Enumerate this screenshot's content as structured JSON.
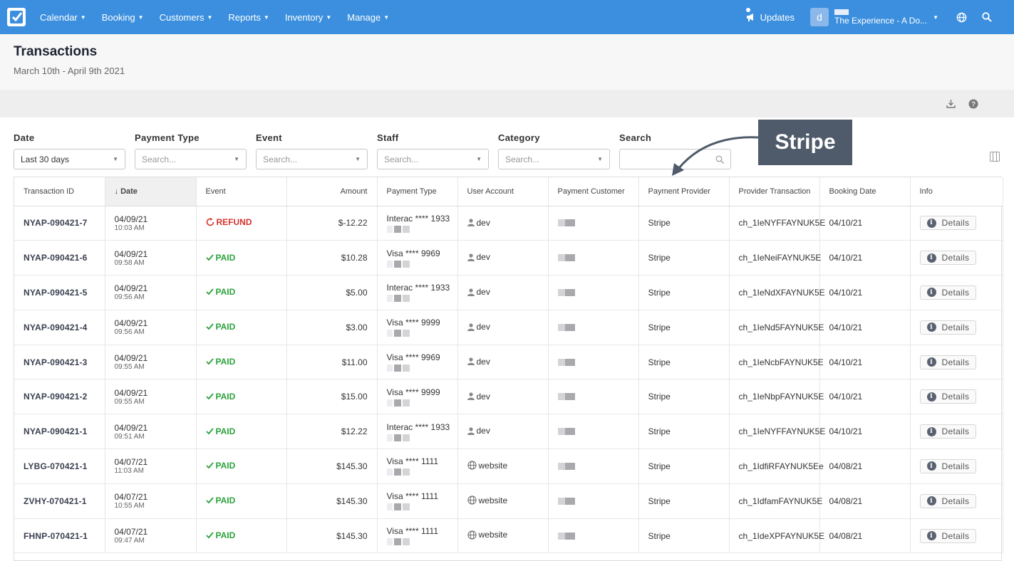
{
  "nav": {
    "items": [
      {
        "label": "Calendar"
      },
      {
        "label": "Booking"
      },
      {
        "label": "Customers"
      },
      {
        "label": "Reports"
      },
      {
        "label": "Inventory"
      },
      {
        "label": "Manage"
      }
    ],
    "updates_label": "Updates",
    "avatar_letter": "d",
    "account_name": "The Experience - A Do..."
  },
  "page": {
    "title": "Transactions",
    "subtitle": "March 10th - April 9th 2021"
  },
  "filters": {
    "date": {
      "label": "Date",
      "value": "Last 30 days"
    },
    "payment_type": {
      "label": "Payment Type",
      "placeholder": "Search..."
    },
    "event": {
      "label": "Event",
      "placeholder": "Search..."
    },
    "staff": {
      "label": "Staff",
      "placeholder": "Search..."
    },
    "category": {
      "label": "Category",
      "placeholder": "Search..."
    },
    "search": {
      "label": "Search",
      "value": ""
    }
  },
  "annotation": {
    "label": "Stripe"
  },
  "table": {
    "columns": {
      "transaction_id": "Transaction ID",
      "date": "Date",
      "event": "Event",
      "amount": "Amount",
      "payment_type": "Payment Type",
      "user_account": "User Account",
      "payment_customer": "Payment Customer",
      "payment_provider": "Payment Provider",
      "provider_transaction": "Provider Transaction",
      "booking_date": "Booking Date",
      "info": "Info"
    },
    "details_label": "Details",
    "rows": [
      {
        "id": "NYAP-090421-7",
        "date": "04/09/21",
        "time": "10:03 AM",
        "status": "REFUND",
        "amount": "$-12.22",
        "payment_type": "Interac **** 1933",
        "user": "dev",
        "provider": "Stripe",
        "provider_tx": "ch_1IeNYFFAYNUK5E",
        "booking_date": "04/10/21"
      },
      {
        "id": "NYAP-090421-6",
        "date": "04/09/21",
        "time": "09:58 AM",
        "status": "PAID",
        "amount": "$10.28",
        "payment_type": "Visa **** 9969",
        "user": "dev",
        "provider": "Stripe",
        "provider_tx": "ch_1IeNeiFAYNUK5E",
        "booking_date": "04/10/21"
      },
      {
        "id": "NYAP-090421-5",
        "date": "04/09/21",
        "time": "09:56 AM",
        "status": "PAID",
        "amount": "$5.00",
        "payment_type": "Interac **** 1933",
        "user": "dev",
        "provider": "Stripe",
        "provider_tx": "ch_1IeNdXFAYNUK5E",
        "booking_date": "04/10/21"
      },
      {
        "id": "NYAP-090421-4",
        "date": "04/09/21",
        "time": "09:56 AM",
        "status": "PAID",
        "amount": "$3.00",
        "payment_type": "Visa **** 9999",
        "user": "dev",
        "provider": "Stripe",
        "provider_tx": "ch_1IeNd5FAYNUK5E",
        "booking_date": "04/10/21"
      },
      {
        "id": "NYAP-090421-3",
        "date": "04/09/21",
        "time": "09:55 AM",
        "status": "PAID",
        "amount": "$11.00",
        "payment_type": "Visa **** 9969",
        "user": "dev",
        "provider": "Stripe",
        "provider_tx": "ch_1IeNcbFAYNUK5E",
        "booking_date": "04/10/21"
      },
      {
        "id": "NYAP-090421-2",
        "date": "04/09/21",
        "time": "09:55 AM",
        "status": "PAID",
        "amount": "$15.00",
        "payment_type": "Visa **** 9999",
        "user": "dev",
        "provider": "Stripe",
        "provider_tx": "ch_1IeNbpFAYNUK5E",
        "booking_date": "04/10/21"
      },
      {
        "id": "NYAP-090421-1",
        "date": "04/09/21",
        "time": "09:51 AM",
        "status": "PAID",
        "amount": "$12.22",
        "payment_type": "Interac **** 1933",
        "user": "dev",
        "provider": "Stripe",
        "provider_tx": "ch_1IeNYFFAYNUK5E",
        "booking_date": "04/10/21"
      },
      {
        "id": "LYBG-070421-1",
        "date": "04/07/21",
        "time": "11:03 AM",
        "status": "PAID",
        "amount": "$145.30",
        "payment_type": "Visa **** 1111",
        "user": "website",
        "provider": "Stripe",
        "provider_tx": "ch_1IdfiRFAYNUK5Ee",
        "booking_date": "04/08/21"
      },
      {
        "id": "ZVHY-070421-1",
        "date": "04/07/21",
        "time": "10:55 AM",
        "status": "PAID",
        "amount": "$145.30",
        "payment_type": "Visa **** 1111",
        "user": "website",
        "provider": "Stripe",
        "provider_tx": "ch_1IdfamFAYNUK5E",
        "booking_date": "04/08/21"
      },
      {
        "id": "FHNP-070421-1",
        "date": "04/07/21",
        "time": "09:47 AM",
        "status": "PAID",
        "amount": "$145.30",
        "payment_type": "Visa **** 1111",
        "user": "website",
        "provider": "Stripe",
        "provider_tx": "ch_1IdeXPFAYNUK5E",
        "booking_date": "04/08/21"
      }
    ]
  }
}
